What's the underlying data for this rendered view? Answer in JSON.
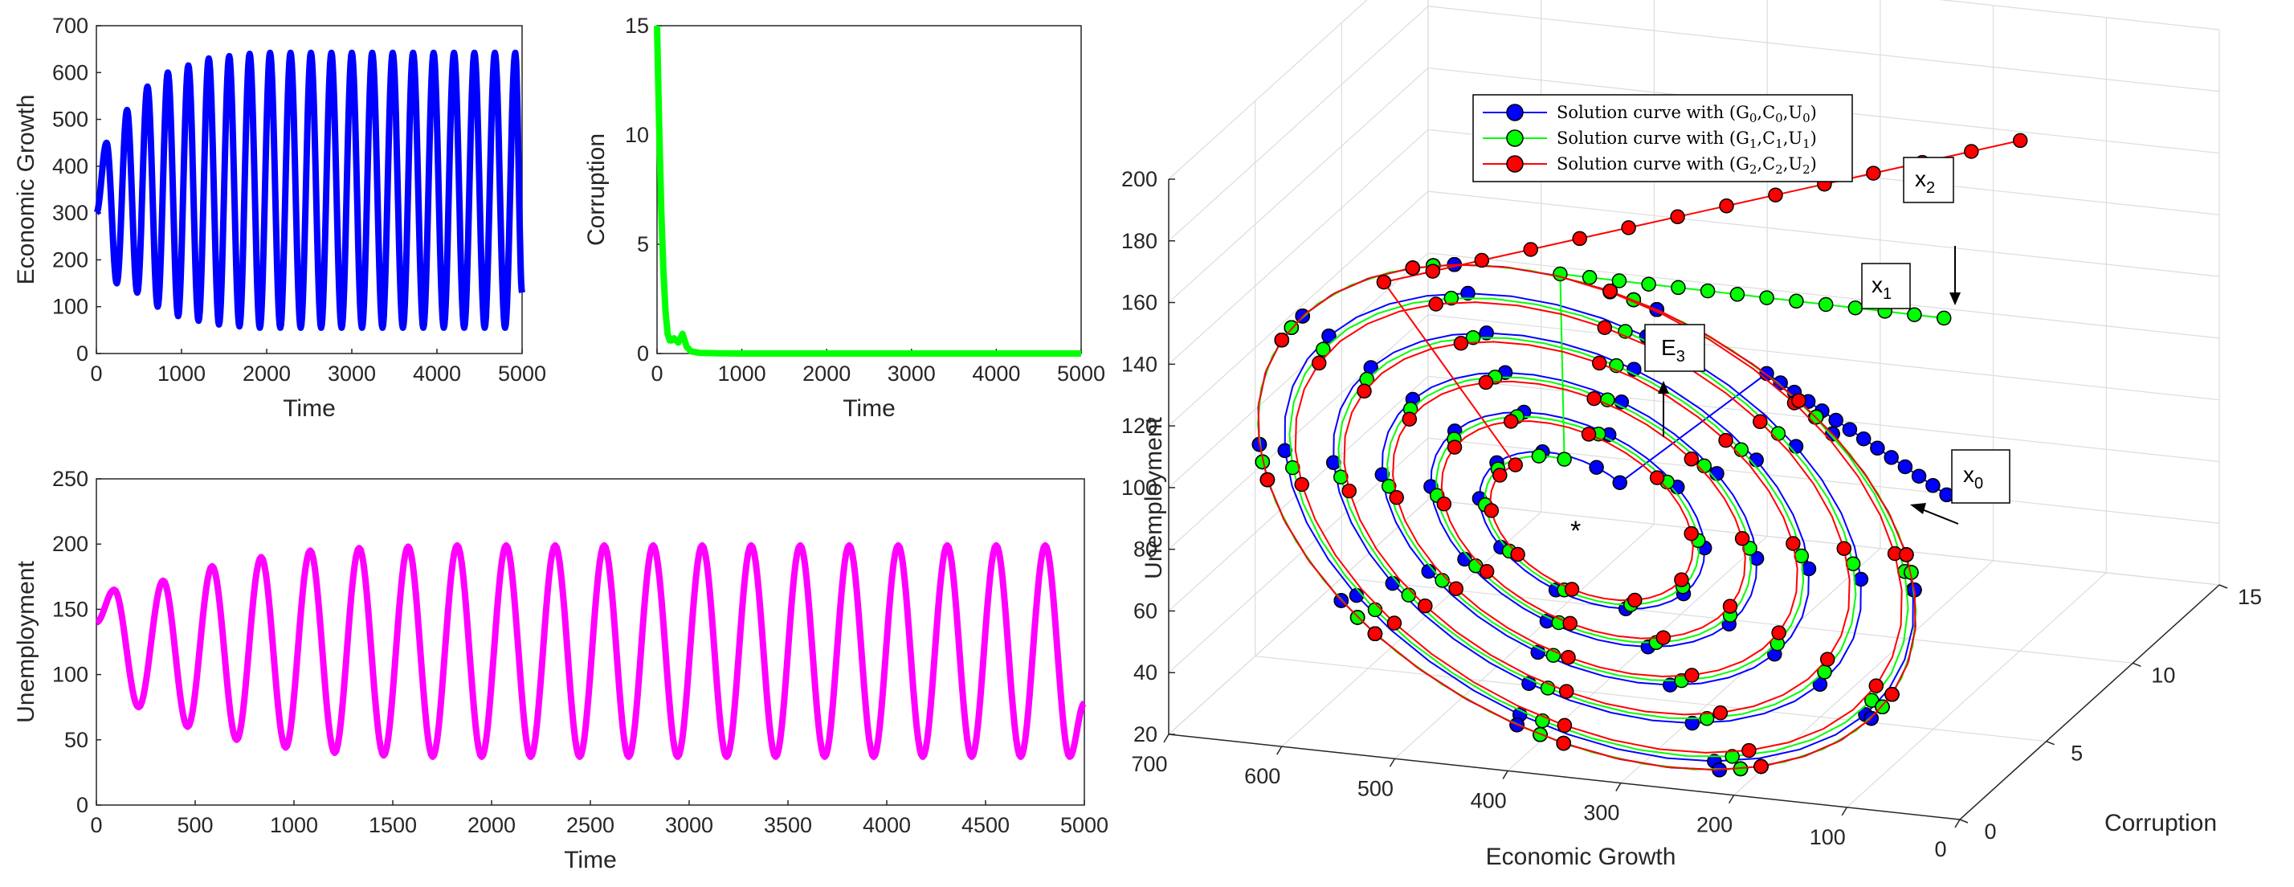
{
  "chart_data": [
    {
      "id": "econ",
      "type": "line",
      "title": "",
      "xlabel": "Time",
      "ylabel": "Economic Growth",
      "xlim": [
        0,
        5000
      ],
      "ylim": [
        0,
        700
      ],
      "xticks": [
        "0",
        "1000",
        "2000",
        "3000",
        "4000",
        "5000"
      ],
      "yticks": [
        "0",
        "100",
        "200",
        "300",
        "400",
        "500",
        "600",
        "700"
      ],
      "color": "#0000ff",
      "series": [
        {
          "name": "Economic Growth",
          "start": 300,
          "period": 240,
          "peaks": [
            450,
            520,
            570,
            600,
            615,
            630,
            635,
            640,
            642,
            642,
            642,
            642,
            642,
            642,
            642,
            642,
            642,
            642,
            642,
            642,
            642
          ],
          "troughs": [
            150,
            130,
            100,
            80,
            70,
            62,
            58,
            55,
            55,
            55,
            55,
            55,
            55,
            55,
            55,
            55,
            55,
            55,
            55,
            55,
            55
          ],
          "end": 130
        }
      ]
    },
    {
      "id": "corr",
      "type": "line",
      "title": "",
      "xlabel": "Time",
      "ylabel": "Corruption",
      "xlim": [
        0,
        5000
      ],
      "ylim": [
        0,
        15
      ],
      "xticks": [
        "0",
        "1000",
        "2000",
        "3000",
        "4000",
        "5000"
      ],
      "yticks": [
        "0",
        "5",
        "10",
        "15"
      ],
      "color": "#00ff00",
      "series": [
        {
          "name": "Corruption",
          "x": [
            0,
            25,
            50,
            75,
            100,
            125,
            150,
            175,
            200,
            250,
            300,
            350,
            400,
            500,
            700,
            1000,
            3000,
            5000
          ],
          "y": [
            15,
            10.5,
            6.5,
            3.8,
            1.9,
            0.9,
            0.6,
            0.6,
            0.7,
            0.5,
            0.9,
            0.3,
            0.1,
            0.03,
            0.01,
            0.0,
            0.0,
            0.0
          ]
        }
      ]
    },
    {
      "id": "unemp",
      "type": "line",
      "title": "",
      "xlabel": "Time",
      "ylabel": "Unemployment",
      "xlim": [
        0,
        5000
      ],
      "ylim": [
        0,
        250
      ],
      "xticks": [
        "0",
        "500",
        "1000",
        "1500",
        "2000",
        "2500",
        "3000",
        "3500",
        "4000",
        "4500",
        "5000"
      ],
      "yticks": [
        "0",
        "50",
        "100",
        "150",
        "200",
        "250"
      ],
      "color": "#ff00ff",
      "series": [
        {
          "name": "Unemployment",
          "start": 140,
          "offset": 90,
          "period": 248,
          "peaks": [
            165,
            172,
            183,
            190,
            195,
            197,
            198,
            199,
            199,
            199,
            199,
            199,
            199,
            199,
            199,
            199,
            199,
            199,
            199,
            199
          ],
          "troughs": [
            75,
            60,
            50,
            44,
            40,
            38,
            37,
            37,
            37,
            37,
            37,
            37,
            37,
            37,
            37,
            37,
            37,
            37,
            37,
            37
          ],
          "end": 78
        }
      ]
    },
    {
      "id": "phase3d",
      "type": "line3d",
      "xlabel": "Economic Growth",
      "ylabel": "Corruption",
      "zlabel": "Unemployment",
      "xlim": [
        0,
        700
      ],
      "ylim": [
        0,
        15
      ],
      "zlim": [
        20,
        200
      ],
      "xticks": [
        "700",
        "600",
        "500",
        "400",
        "300",
        "200",
        "100",
        "0"
      ],
      "yticks": [
        "0",
        "5",
        "10",
        "15"
      ],
      "zticks": [
        "20",
        "40",
        "60",
        "80",
        "100",
        "120",
        "140",
        "160",
        "180",
        "200"
      ],
      "equilibrium": {
        "G": 340,
        "C": 0,
        "U": 103,
        "label": "E",
        "sub": "3"
      },
      "legend": [
        {
          "text": "Solution curve with (G",
          "sub": "0",
          "mid": ",C",
          "sub2": "0",
          "mid2": ",U",
          "sub3": "0",
          "close": ")",
          "color": "#0000ff"
        },
        {
          "text": "Solution curve with (G",
          "sub": "1",
          "mid": ",C",
          "sub2": "1",
          "mid2": ",U",
          "sub3": "1",
          "close": ")",
          "color": "#00ff00"
        },
        {
          "text": "Solution curve with (G",
          "sub": "2",
          "mid": ",C",
          "sub2": "2",
          "mid2": ",U",
          "sub3": "2",
          "close": ")",
          "color": "#ff0000"
        }
      ],
      "annotations": [
        {
          "label": "x",
          "sub": "0"
        },
        {
          "label": "x",
          "sub": "1"
        },
        {
          "label": "x",
          "sub": "2"
        }
      ],
      "curves": [
        {
          "name": "curve-0",
          "color": "#0000ff",
          "start": {
            "G": 30,
            "C": 2,
            "U": 118
          }
        },
        {
          "name": "curve-1",
          "color": "#00ff00",
          "start": {
            "G": 60,
            "C": 5,
            "U": 165
          }
        },
        {
          "name": "curve-2",
          "color": "#ff0000",
          "start": {
            "G": 20,
            "C": 8,
            "U": 215
          }
        }
      ]
    }
  ]
}
